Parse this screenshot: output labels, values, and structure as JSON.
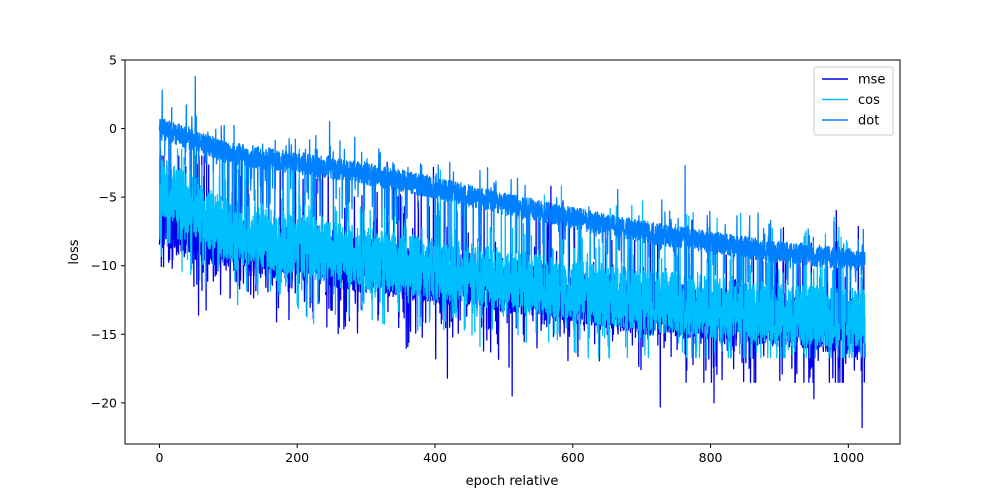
{
  "chart_data": {
    "type": "line",
    "title": "",
    "xlabel": "epoch relative",
    "ylabel": "loss",
    "xlim": [
      -50,
      1075
    ],
    "ylim": [
      -23,
      5
    ],
    "xticks": [
      0,
      200,
      400,
      600,
      800,
      1000
    ],
    "yticks": [
      5,
      0,
      -5,
      -10,
      -15,
      -20
    ],
    "xtick_labels": [
      "0",
      "200",
      "400",
      "600",
      "800",
      "1000"
    ],
    "ytick_labels": [
      "5",
      "0",
      "−5",
      "−10",
      "−15",
      "−20"
    ],
    "grid": false,
    "legend_position": "top-right",
    "x_range": [
      0,
      1024
    ],
    "series": [
      {
        "name": "mse",
        "color": "#0000ee",
        "trend": [
          {
            "x": 0,
            "y": -6.5
          },
          {
            "x": 100,
            "y": -8.5
          },
          {
            "x": 300,
            "y": -10.0
          },
          {
            "x": 500,
            "y": -11.5
          },
          {
            "x": 700,
            "y": -13.0
          },
          {
            "x": 900,
            "y": -14.0
          },
          {
            "x": 1024,
            "y": -14.5
          }
        ],
        "min_spikes": [
          {
            "x": 418,
            "y": -18.2
          },
          {
            "x": 512,
            "y": -19.5
          },
          {
            "x": 727,
            "y": -20.3
          },
          {
            "x": 805,
            "y": -20.0
          },
          {
            "x": 950,
            "y": -19.7
          },
          {
            "x": 1020,
            "y": -21.8
          }
        ]
      },
      {
        "name": "cos",
        "color": "#00bfff",
        "trend": [
          {
            "x": 0,
            "y": -4.0
          },
          {
            "x": 100,
            "y": -7.5
          },
          {
            "x": 300,
            "y": -9.5
          },
          {
            "x": 500,
            "y": -11.0
          },
          {
            "x": 700,
            "y": -12.5
          },
          {
            "x": 900,
            "y": -13.5
          },
          {
            "x": 1024,
            "y": -14.0
          }
        ],
        "floor": -16.7
      },
      {
        "name": "dot",
        "color": "#0080ff",
        "trend": [
          {
            "x": 0,
            "y": 0.0
          },
          {
            "x": 50,
            "y": -0.8
          },
          {
            "x": 100,
            "y": -1.8
          },
          {
            "x": 200,
            "y": -2.5
          },
          {
            "x": 300,
            "y": -3.3
          },
          {
            "x": 400,
            "y": -4.3
          },
          {
            "x": 500,
            "y": -5.5
          },
          {
            "x": 600,
            "y": -6.5
          },
          {
            "x": 700,
            "y": -7.5
          },
          {
            "x": 800,
            "y": -8.3
          },
          {
            "x": 900,
            "y": -9.0
          },
          {
            "x": 1024,
            "y": -9.6
          }
        ],
        "max_spikes": [
          {
            "x": 52,
            "y": 3.8
          },
          {
            "x": 4,
            "y": 2.8
          },
          {
            "x": 247,
            "y": 0.5
          },
          {
            "x": 763,
            "y": -2.7
          }
        ]
      }
    ]
  }
}
